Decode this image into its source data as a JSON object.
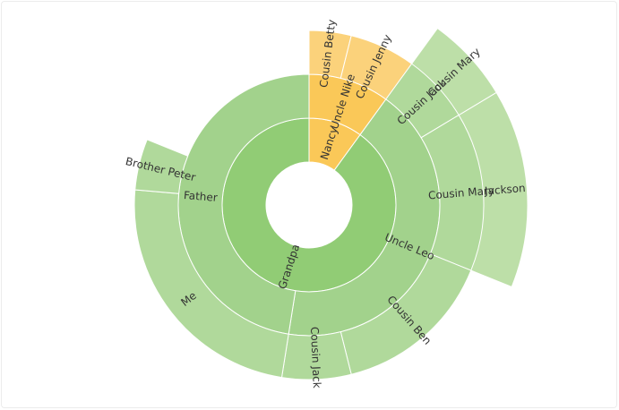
{
  "chart_data": {
    "type": "sunburst",
    "title": "",
    "colors": {
      "green_1": "#91cc75",
      "green_2": "#a2d28c",
      "green_3": "#b0d99b",
      "green_4": "#bddfa8",
      "gold_2": "#fac858",
      "gold_3": "#fbd27b"
    },
    "nodes": [
      {
        "name": "Nancy",
        "depth": 1,
        "start": 0,
        "end": 36,
        "color": "gold_2",
        "children": [
          {
            "name": "Uncle Nike",
            "depth": 2,
            "start": 0,
            "end": 36,
            "color": "gold_2",
            "children": [
              {
                "name": "Cousin Betty",
                "depth": 3,
                "start": 0,
                "end": 14,
                "color": "gold_3",
                "children": []
              },
              {
                "name": "Cousin Jenny",
                "depth": 3,
                "start": 14,
                "end": 36,
                "color": "gold_3",
                "children": []
              }
            ]
          }
        ]
      },
      {
        "name": "Grandpa",
        "depth": 1,
        "start": 36,
        "end": 360,
        "color": "green_1",
        "children": [
          {
            "name": "Uncle Leo",
            "depth": 2,
            "start": 36,
            "end": 189,
            "color": "green_2",
            "children": [
              {
                "name": "Cousin Jack",
                "depth": 3,
                "start": 36,
                "end": 59,
                "color": "green_3",
                "children": [
                  {
                    "name": "Cousin Mary",
                    "depth": 4,
                    "start": 36,
                    "end": 59,
                    "color": "green_4",
                    "children": []
                  }
                ]
              },
              {
                "name": "Cousin Mary",
                "depth": 3,
                "start": 59,
                "end": 112,
                "color": "green_3",
                "children": [
                  {
                    "name": "Jackson",
                    "depth": 4,
                    "start": 59,
                    "end": 112,
                    "color": "green_4",
                    "children": []
                  }
                ]
              },
              {
                "name": "Cousin Ben",
                "depth": 3,
                "start": 112,
                "end": 166,
                "color": "green_3",
                "children": []
              },
              {
                "name": "Cousin Jack",
                "depth": 3,
                "start": 166,
                "end": 189,
                "color": "green_3",
                "children": []
              }
            ]
          },
          {
            "name": "Father",
            "depth": 2,
            "start": 189,
            "end": 360,
            "color": "green_2",
            "children": [
              {
                "name": "Me",
                "depth": 3,
                "start": 189,
                "end": 275,
                "color": "green_3",
                "children": []
              },
              {
                "name": "Brother Peter",
                "depth": 3,
                "start": 275,
                "end": 292,
                "color": "green_3",
                "children": []
              }
            ]
          }
        ]
      }
    ]
  }
}
